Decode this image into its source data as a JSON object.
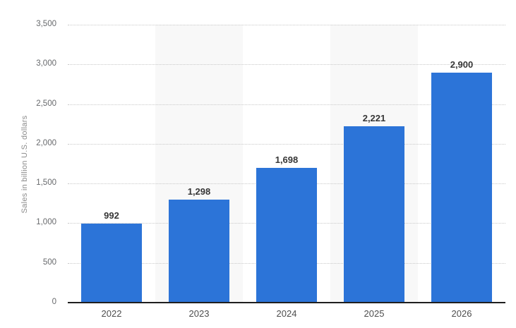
{
  "chart_data": {
    "type": "bar",
    "categories": [
      "2022",
      "2023",
      "2024",
      "2025",
      "2026"
    ],
    "values": [
      992,
      1298,
      1698,
      2221,
      2900
    ],
    "value_labels": [
      "992",
      "1,298",
      "1,698",
      "2,221",
      "2,900"
    ],
    "title": "",
    "xlabel": "",
    "ylabel": "Sales in billion U.S. dollars",
    "ylim": [
      0,
      3500
    ],
    "ytick_step": 500,
    "ytick_labels": [
      "0",
      "500",
      "1,000",
      "1,500",
      "2,000",
      "2,500",
      "3,000",
      "3,500"
    ],
    "grid": "horizontal-dotted",
    "legend": "none",
    "banded_columns": [
      1,
      3
    ],
    "colors": {
      "bar": "#2c74d8",
      "band": "#f8f8f8",
      "gridline": "#c9c9c9",
      "baseline": "#1f1f1f",
      "ytick_text": "#67696c",
      "xlabel_text": "#4d4d4d",
      "value_label_text": "#363636",
      "axis_title_text": "#8c8c8c",
      "background": "#ffffff"
    }
  }
}
